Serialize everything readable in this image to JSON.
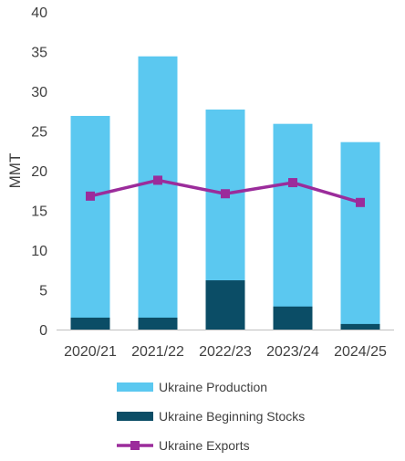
{
  "chart_data": {
    "type": "bar",
    "stacked": true,
    "categories": [
      "2020/21",
      "2021/22",
      "2022/23",
      "2023/24",
      "2024/25"
    ],
    "ylabel": "MMT",
    "xlabel": "",
    "title": "",
    "ylim": [
      0,
      40
    ],
    "yticks": [
      0,
      5,
      10,
      15,
      20,
      25,
      30,
      35,
      40
    ],
    "grid": false,
    "legend_position": "bottom",
    "series": [
      {
        "name": "Ukraine Production",
        "kind": "bar-total",
        "color": "#5BC8F0",
        "values": [
          26.9,
          34.4,
          27.7,
          25.9,
          23.6
        ]
      },
      {
        "name": "Ukraine Beginning Stocks",
        "kind": "bar-base",
        "color": "#0B4D66",
        "values": [
          1.5,
          1.5,
          6.2,
          2.9,
          0.7
        ]
      },
      {
        "name": "Ukraine Exports",
        "kind": "line",
        "color": "#9B2C9B",
        "values": [
          16.8,
          18.8,
          17.1,
          18.5,
          16.0
        ]
      }
    ]
  }
}
